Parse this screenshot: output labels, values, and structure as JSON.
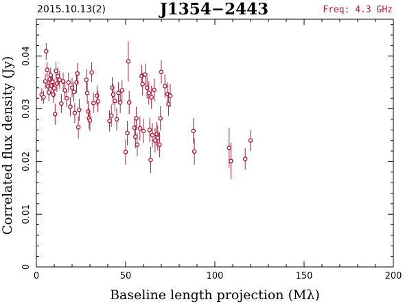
{
  "header": {
    "date_label": "2015.10.13(2)",
    "source_name": "J1354−2443",
    "freq_label": "Freq: 4.3 GHz"
  },
  "colors": {
    "points": "#b0193a",
    "axes": "#000000"
  },
  "chart_data": {
    "type": "scatter",
    "xlabel": "Baseline length projection (Mλ)",
    "ylabel": "Correlated flux density (Jy)",
    "xlim": [
      0,
      200
    ],
    "ylim": [
      0,
      0.047
    ],
    "xticks": [
      0,
      50,
      100,
      150,
      200
    ],
    "xtick_labels": [
      "0",
      "50",
      "100",
      "150",
      "200"
    ],
    "yticks": [
      0,
      0.01,
      0.02,
      0.03,
      0.04
    ],
    "ytick_labels": [
      "0",
      "0.01",
      "0.02",
      "0.03",
      "0.04"
    ],
    "grid": false,
    "series": [
      {
        "points": [
          [
            3,
            0.0327,
            0.0012
          ],
          [
            4,
            0.0322,
            0.0012
          ],
          [
            5,
            0.0352,
            0.0014
          ],
          [
            5.5,
            0.0409,
            0.0016
          ],
          [
            6,
            0.0374,
            0.0014
          ],
          [
            6.5,
            0.0343,
            0.0015
          ],
          [
            7,
            0.0331,
            0.0016
          ],
          [
            7.5,
            0.0356,
            0.0015
          ],
          [
            8,
            0.0364,
            0.0014
          ],
          [
            8.5,
            0.0344,
            0.0016
          ],
          [
            9,
            0.0351,
            0.0015
          ],
          [
            9.5,
            0.0327,
            0.0016
          ],
          [
            10,
            0.0339,
            0.0018
          ],
          [
            10.5,
            0.029,
            0.002
          ],
          [
            11,
            0.0372,
            0.0016
          ],
          [
            11.5,
            0.0348,
            0.0016
          ],
          [
            12,
            0.0362,
            0.0016
          ],
          [
            13,
            0.0355,
            0.0017
          ],
          [
            14,
            0.031,
            0.0018
          ],
          [
            15,
            0.0352,
            0.0017
          ],
          [
            16,
            0.0335,
            0.0018
          ],
          [
            17,
            0.032,
            0.0017
          ],
          [
            18,
            0.035,
            0.0018
          ],
          [
            19,
            0.0304,
            0.0018
          ],
          [
            20,
            0.034,
            0.0018
          ],
          [
            21,
            0.0332,
            0.0018
          ],
          [
            21.5,
            0.0292,
            0.0019
          ],
          [
            22.5,
            0.035,
            0.002
          ],
          [
            23,
            0.0367,
            0.002
          ],
          [
            23.5,
            0.0265,
            0.0021
          ],
          [
            24,
            0.0298,
            0.0021
          ],
          [
            28,
            0.0355,
            0.002
          ],
          [
            28.5,
            0.033,
            0.002
          ],
          [
            29,
            0.0295,
            0.002
          ],
          [
            29.5,
            0.0282,
            0.002
          ],
          [
            30,
            0.0278,
            0.002
          ],
          [
            31,
            0.0369,
            0.0019
          ],
          [
            32,
            0.0311,
            0.0019
          ],
          [
            34,
            0.0325,
            0.0019
          ],
          [
            34.5,
            0.0314,
            0.002
          ],
          [
            41,
            0.0277,
            0.002
          ],
          [
            42,
            0.0287,
            0.0021
          ],
          [
            42.5,
            0.034,
            0.002
          ],
          [
            43,
            0.0327,
            0.002
          ],
          [
            44,
            0.0315,
            0.002
          ],
          [
            45,
            0.028,
            0.0021
          ],
          [
            46,
            0.033,
            0.002
          ],
          [
            47,
            0.0312,
            0.002
          ],
          [
            48,
            0.0335,
            0.002
          ],
          [
            50,
            0.0218,
            0.0024
          ],
          [
            51,
            0.0254,
            0.0023
          ],
          [
            51.5,
            0.039,
            0.0038
          ],
          [
            52,
            0.0312,
            0.0022
          ],
          [
            55,
            0.0264,
            0.0022
          ],
          [
            55.5,
            0.0247,
            0.0022
          ],
          [
            56,
            0.0282,
            0.0022
          ],
          [
            56.5,
            0.0232,
            0.0022
          ],
          [
            58,
            0.0263,
            0.0023
          ],
          [
            59,
            0.0362,
            0.0021
          ],
          [
            59.5,
            0.0347,
            0.0022
          ],
          [
            60,
            0.0258,
            0.0023
          ],
          [
            61,
            0.0365,
            0.0021
          ],
          [
            62,
            0.034,
            0.0021
          ],
          [
            63,
            0.033,
            0.0022
          ],
          [
            63.5,
            0.026,
            0.0023
          ],
          [
            64,
            0.0203,
            0.0025
          ],
          [
            64.5,
            0.0322,
            0.0022
          ],
          [
            65,
            0.025,
            0.0023
          ],
          [
            66,
            0.0336,
            0.0021
          ],
          [
            66.5,
            0.024,
            0.0023
          ],
          [
            67.5,
            0.0252,
            0.0023
          ],
          [
            68,
            0.0245,
            0.0024
          ],
          [
            69,
            0.0232,
            0.0024
          ],
          [
            69.5,
            0.0282,
            0.0023
          ],
          [
            70,
            0.037,
            0.0022
          ],
          [
            72,
            0.0343,
            0.0022
          ],
          [
            73.5,
            0.0328,
            0.0022
          ],
          [
            74,
            0.0309,
            0.0022
          ],
          [
            75,
            0.0325,
            0.0022
          ],
          [
            88,
            0.0258,
            0.0024
          ],
          [
            88.5,
            0.0219,
            0.0025
          ],
          [
            108,
            0.0226,
            0.0038
          ],
          [
            109,
            0.0201,
            0.0035
          ],
          [
            117,
            0.0205,
            0.002
          ],
          [
            120,
            0.024,
            0.002
          ]
        ]
      }
    ]
  }
}
